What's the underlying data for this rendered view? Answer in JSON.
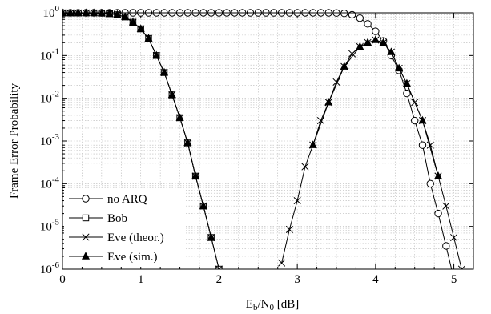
{
  "chart_data": {
    "type": "line",
    "title": "",
    "xlabel": {
      "main": "E",
      "sub1": "b",
      "mid": "/N",
      "sub2": "0",
      "unit": " [dB]"
    },
    "ylabel": "Frame Error Probability",
    "xlim": [
      0,
      5.25
    ],
    "ylim": [
      1e-06,
      1
    ],
    "y_scale": "log",
    "grid": true,
    "legend_position": "bottom-left",
    "x_ticks": [
      "0",
      "1",
      "2",
      "3",
      "4",
      "5"
    ],
    "y_ticks": [
      {
        "base": "10",
        "exp": "0"
      },
      {
        "base": "10",
        "exp": "-1"
      },
      {
        "base": "10",
        "exp": "-2"
      },
      {
        "base": "10",
        "exp": "-3"
      },
      {
        "base": "10",
        "exp": "-4"
      },
      {
        "base": "10",
        "exp": "-5"
      },
      {
        "base": "10",
        "exp": "-6"
      }
    ],
    "series": [
      {
        "name": "no ARQ",
        "marker": "circle",
        "x": [
          0,
          0.1,
          0.2,
          0.3,
          0.4,
          0.5,
          0.6,
          0.7,
          0.8,
          0.9,
          1.0,
          1.1,
          1.2,
          1.3,
          1.4,
          1.5,
          1.6,
          1.7,
          1.8,
          1.9,
          2.0,
          2.1,
          2.2,
          2.3,
          2.4,
          2.5,
          2.6,
          2.7,
          2.8,
          2.9,
          3.0,
          3.1,
          3.2,
          3.3,
          3.4,
          3.5,
          3.6,
          3.7,
          3.8,
          3.9,
          4.0,
          4.1,
          4.2,
          4.3,
          4.4,
          4.5,
          4.6,
          4.7,
          4.8,
          4.9,
          5.0
        ],
        "y": [
          1,
          1,
          1,
          1,
          1,
          1,
          1,
          1,
          1,
          1,
          1,
          1,
          1,
          1,
          1,
          1,
          1,
          1,
          1,
          1,
          1,
          1,
          1,
          1,
          1,
          1,
          1,
          1,
          1,
          1,
          1,
          1,
          1,
          1,
          1,
          0.99,
          0.97,
          0.9,
          0.75,
          0.55,
          0.37,
          0.22,
          0.1,
          0.045,
          0.013,
          0.003,
          0.0008,
          0.0001,
          2e-05,
          3.5e-06,
          6e-07
        ]
      },
      {
        "name": "Bob",
        "marker": "square",
        "x": [
          0,
          0.1,
          0.2,
          0.3,
          0.4,
          0.5,
          0.6,
          0.7,
          0.8,
          0.9,
          1.0,
          1.1,
          1.2,
          1.3,
          1.4,
          1.5,
          1.6,
          1.7,
          1.8,
          1.9,
          2.0,
          2.1
        ],
        "y": [
          0.99,
          0.99,
          0.99,
          0.99,
          0.99,
          0.98,
          0.95,
          0.9,
          0.8,
          0.6,
          0.42,
          0.25,
          0.1,
          0.04,
          0.012,
          0.0035,
          0.0009,
          0.00015,
          3e-05,
          5.5e-06,
          1e-06,
          2e-07
        ]
      },
      {
        "name": "Eve (theor.)",
        "marker": "x",
        "x": [
          0,
          0.1,
          0.2,
          0.3,
          0.4,
          0.5,
          0.6,
          0.7,
          0.8,
          0.9,
          1.0,
          1.1,
          1.2,
          1.3,
          1.4,
          1.5,
          1.6,
          1.7,
          1.8,
          1.9,
          2.0,
          2.1,
          2.8,
          2.9,
          3.0,
          3.1,
          3.2,
          3.3,
          3.4,
          3.5,
          3.6,
          3.7,
          3.8,
          3.9,
          4.0,
          4.1,
          4.2,
          4.3,
          4.4,
          4.5,
          4.6,
          4.7,
          4.8,
          4.9,
          5.0,
          5.1
        ],
        "y": [
          0.99,
          0.99,
          0.99,
          0.99,
          0.99,
          0.98,
          0.95,
          0.9,
          0.8,
          0.6,
          0.42,
          0.25,
          0.1,
          0.04,
          0.012,
          0.0035,
          0.0009,
          0.00015,
          3e-05,
          5.5e-06,
          1e-06,
          2e-07,
          1.4e-06,
          8.5e-06,
          4e-05,
          0.00025,
          0.0008,
          0.003,
          0.008,
          0.024,
          0.055,
          0.11,
          0.16,
          0.2,
          0.23,
          0.2,
          0.12,
          0.05,
          0.022,
          0.008,
          0.003,
          0.0008,
          0.00015,
          3e-05,
          5.5e-06,
          1e-06
        ]
      },
      {
        "name": "Eve (sim.)",
        "marker": "triangle",
        "x": [
          0,
          0.1,
          0.2,
          0.3,
          0.4,
          0.5,
          0.6,
          0.7,
          0.8,
          0.9,
          1.0,
          1.1,
          1.2,
          1.3,
          1.4,
          1.5,
          1.6,
          1.7,
          1.8,
          1.9,
          3.2,
          3.4,
          3.6,
          3.8,
          3.9,
          4.0,
          4.1,
          4.2,
          4.3,
          4.4,
          4.6,
          4.8
        ],
        "y": [
          0.99,
          0.99,
          0.99,
          0.99,
          0.99,
          0.98,
          0.95,
          0.9,
          0.8,
          0.6,
          0.42,
          0.25,
          0.1,
          0.04,
          0.012,
          0.0035,
          0.0009,
          0.00015,
          3e-05,
          5.5e-06,
          0.0008,
          0.008,
          0.055,
          0.16,
          0.2,
          0.23,
          0.2,
          0.12,
          0.05,
          0.022,
          0.003,
          0.00015
        ]
      }
    ]
  }
}
